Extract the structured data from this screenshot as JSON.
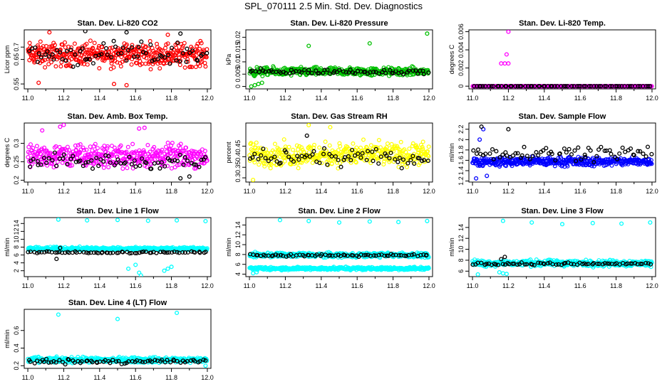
{
  "figure": {
    "title": "SPL_070111  2.5 Min. Std. Dev. Diagnostics"
  },
  "chart_data": [
    {
      "type": "scatter",
      "title": "Stan. Dev. Li-820 CO2",
      "ylabel": "Licor ppm",
      "xlim": [
        10.98,
        12.02
      ],
      "ylim": [
        0.53,
        0.77
      ],
      "xticks": [
        11.0,
        11.2,
        11.4,
        11.6,
        11.8,
        12.0
      ],
      "yticks": [
        0.55,
        0.65,
        0.7
      ],
      "series": [
        {
          "color": "#ff0000",
          "role": "main",
          "band": [
            0.6,
            0.74
          ],
          "outliers": [
            [
              11.06,
              0.555
            ],
            [
              11.48,
              0.55
            ],
            [
              11.55,
              0.545
            ],
            [
              11.78,
              0.75
            ],
            [
              11.12,
              0.76
            ]
          ]
        },
        {
          "color": "#000000",
          "role": "reference",
          "band": [
            0.6,
            0.74
          ],
          "outliers": [
            [
              11.32,
              0.765
            ],
            [
              11.55,
              0.76
            ],
            [
              11.85,
              0.755
            ]
          ]
        }
      ]
    },
    {
      "type": "scatter",
      "title": "Stan. Dev. Li-820 Pressure",
      "ylabel": "kPa",
      "xlim": [
        10.98,
        12.02
      ],
      "ylim": [
        -0.001,
        0.023
      ],
      "xticks": [
        11.0,
        11.2,
        11.4,
        11.6,
        11.8,
        12.0
      ],
      "yticks": [
        0.0,
        0.005,
        0.01,
        0.015,
        0.02
      ],
      "series": [
        {
          "color": "#00c000",
          "role": "main",
          "band": [
            0.0035,
            0.0085
          ],
          "outliers": [
            [
              11.33,
              0.0165
            ],
            [
              11.67,
              0.0175
            ],
            [
              11.99,
              0.0215
            ],
            [
              11.01,
              0.0
            ],
            [
              11.03,
              0.0005
            ],
            [
              11.05,
              0.001
            ],
            [
              11.07,
              0.0015
            ]
          ]
        },
        {
          "color": "#000000",
          "role": "reference",
          "band": [
            0.0045,
            0.0075
          ],
          "outliers": []
        }
      ]
    },
    {
      "type": "scatter",
      "title": "Stan. Dev. Li-820 Temp.",
      "ylabel": "degrees C",
      "xlim": [
        10.98,
        12.02
      ],
      "ylim": [
        -0.0003,
        0.0062
      ],
      "xticks": [
        11.0,
        11.2,
        11.4,
        11.6,
        11.8,
        12.0
      ],
      "yticks": [
        0.0,
        0.002,
        0.004,
        0.006
      ],
      "series": [
        {
          "color": "#ff00ff",
          "role": "main",
          "band": [
            0.0,
            0.0
          ],
          "outliers": [
            [
              11.16,
              0.0025
            ],
            [
              11.18,
              0.0025
            ],
            [
              11.19,
              0.0035
            ],
            [
              11.2,
              0.006
            ],
            [
              11.2,
              0.0025
            ]
          ]
        },
        {
          "color": "#000000",
          "role": "reference",
          "band": [
            0.0,
            0.0
          ],
          "outliers": []
        }
      ]
    },
    {
      "type": "scatter",
      "title": "Stan. Dev. Amb. Box Temp.",
      "ylabel": "degrees C",
      "xlim": [
        10.98,
        12.02
      ],
      "ylim": [
        0.195,
        0.355
      ],
      "xticks": [
        11.0,
        11.2,
        11.4,
        11.6,
        11.8,
        12.0
      ],
      "yticks": [
        0.2,
        0.25,
        0.3
      ],
      "series": [
        {
          "color": "#ff00ff",
          "role": "main",
          "band": [
            0.22,
            0.31
          ],
          "outliers": [
            [
              11.18,
              0.345
            ],
            [
              11.2,
              0.35
            ],
            [
              11.62,
              0.34
            ],
            [
              11.65,
              0.342
            ],
            [
              11.08,
              0.335
            ]
          ]
        },
        {
          "color": "#000000",
          "role": "reference",
          "band": [
            0.22,
            0.28
          ],
          "outliers": [
            [
              11.85,
              0.205
            ],
            [
              11.9,
              0.21
            ]
          ]
        }
      ]
    },
    {
      "type": "scatter",
      "title": "Stan. Dev. Gas Stream RH",
      "ylabel": "percent",
      "xlim": [
        10.98,
        12.02
      ],
      "ylim": [
        0.28,
        0.56
      ],
      "xticks": [
        11.0,
        11.2,
        11.4,
        11.6,
        11.8,
        12.0
      ],
      "yticks": [
        0.3,
        0.35,
        0.4,
        0.45
      ],
      "series": [
        {
          "color": "#ffff00",
          "role": "main",
          "band": [
            0.33,
            0.49
          ],
          "outliers": [
            [
              11.45,
              0.54
            ],
            [
              11.02,
              0.29
            ],
            [
              11.33,
              0.55
            ]
          ]
        },
        {
          "color": "#000000",
          "role": "reference",
          "band": [
            0.34,
            0.45
          ],
          "outliers": [
            [
              11.32,
              0.5
            ]
          ]
        }
      ]
    },
    {
      "type": "scatter",
      "title": "Stan. Dev. Sample Flow",
      "ylabel": "ml/min",
      "xlim": [
        10.98,
        12.02
      ],
      "ylim": [
        1.18,
        2.32
      ],
      "xticks": [
        11.0,
        11.2,
        11.4,
        11.6,
        11.8,
        12.0
      ],
      "yticks": [
        1.2,
        1.4,
        1.6,
        1.8,
        2.0,
        2.2
      ],
      "series": [
        {
          "color": "#0000ff",
          "role": "main",
          "band": [
            1.45,
            1.7
          ],
          "outliers": [
            [
              11.04,
              2.0
            ],
            [
              11.06,
              2.2
            ],
            [
              11.08,
              1.3
            ],
            [
              11.02,
              1.25
            ]
          ]
        },
        {
          "color": "#000000",
          "role": "reference",
          "band": [
            1.55,
            1.95
          ],
          "outliers": [
            [
              11.05,
              2.25
            ],
            [
              11.2,
              2.2
            ]
          ]
        }
      ]
    },
    {
      "type": "scatter",
      "title": "Stan. Dev. Line 1 Flow",
      "ylabel": "ml/min",
      "xlim": [
        10.98,
        12.02
      ],
      "ylim": [
        0.5,
        15.5
      ],
      "xticks": [
        11.0,
        11.2,
        11.4,
        11.6,
        11.8,
        12.0
      ],
      "yticks": [
        2,
        4,
        6,
        8,
        10,
        12,
        14
      ],
      "series": [
        {
          "color": "#00ffff",
          "role": "main",
          "band": [
            7.0,
            8.2
          ],
          "outliers": [
            [
              11.17,
              15.0
            ],
            [
              11.33,
              14.8
            ],
            [
              11.5,
              14.9
            ],
            [
              11.67,
              14.7
            ],
            [
              11.83,
              14.8
            ],
            [
              11.99,
              14.6
            ],
            [
              11.6,
              3.5
            ],
            [
              11.62,
              1.5
            ],
            [
              11.63,
              0.8
            ],
            [
              11.56,
              2.5
            ],
            [
              11.76,
              2.0
            ],
            [
              11.78,
              2.5
            ],
            [
              11.8,
              3.0
            ]
          ]
        },
        {
          "color": "#000000",
          "role": "reference",
          "band": [
            6.3,
            7.0
          ],
          "outliers": [
            [
              11.16,
              5.0
            ],
            [
              11.18,
              7.8
            ]
          ]
        }
      ]
    },
    {
      "type": "scatter",
      "title": "Stan. Dev. Line 2 Flow",
      "ylabel": "ml/min",
      "xlim": [
        10.98,
        12.02
      ],
      "ylim": [
        3.5,
        15.5
      ],
      "xticks": [
        11.0,
        11.2,
        11.4,
        11.6,
        11.8,
        12.0
      ],
      "yticks": [
        4,
        6,
        8,
        10,
        12,
        14
      ],
      "series": [
        {
          "color": "#00ffff",
          "role": "main",
          "band": [
            7.2,
            8.6
          ],
          "outliers": [
            [
              11.17,
              15.0
            ],
            [
              11.33,
              14.8
            ],
            [
              11.5,
              14.5
            ],
            [
              11.67,
              14.7
            ],
            [
              11.83,
              14.6
            ],
            [
              11.99,
              14.8
            ]
          ]
        },
        {
          "color": "#00ffff",
          "role": "main-lower",
          "band": [
            4.7,
            5.6
          ],
          "outliers": [
            [
              11.02,
              4.2
            ],
            [
              11.04,
              4.4
            ]
          ]
        },
        {
          "color": "#000000",
          "role": "reference",
          "band": [
            7.5,
            8.2
          ],
          "outliers": []
        }
      ]
    },
    {
      "type": "scatter",
      "title": "Stan. Dev. Line 3 Flow",
      "ylabel": "ml/min",
      "xlim": [
        10.98,
        12.02
      ],
      "ylim": [
        5.0,
        15.8
      ],
      "xticks": [
        11.0,
        11.2,
        11.4,
        11.6,
        11.8,
        12.0
      ],
      "yticks": [
        6,
        8,
        10,
        12,
        14
      ],
      "series": [
        {
          "color": "#00ffff",
          "role": "main",
          "band": [
            6.6,
            8.3
          ],
          "outliers": [
            [
              11.17,
              15.2
            ],
            [
              11.33,
              14.9
            ],
            [
              11.5,
              14.6
            ],
            [
              11.67,
              14.8
            ],
            [
              11.83,
              14.7
            ],
            [
              11.99,
              14.9
            ],
            [
              11.03,
              5.4
            ],
            [
              11.15,
              5.8
            ],
            [
              11.17,
              5.6
            ],
            [
              11.19,
              5.5
            ]
          ]
        },
        {
          "color": "#000000",
          "role": "reference",
          "band": [
            7.0,
            7.7
          ],
          "outliers": [
            [
              11.16,
              8.2
            ],
            [
              11.18,
              8.6
            ]
          ]
        }
      ]
    },
    {
      "type": "scatter",
      "title": "Stan. Dev. Line 4 (LT) Flow",
      "ylabel": "ml/min",
      "xlim": [
        10.98,
        12.02
      ],
      "ylim": [
        0.17,
        0.84
      ],
      "xticks": [
        11.0,
        11.2,
        11.4,
        11.6,
        11.8,
        12.0
      ],
      "yticks": [
        0.2,
        0.4,
        0.6
      ],
      "series": [
        {
          "color": "#00ffff",
          "role": "main",
          "band": [
            0.22,
            0.31
          ],
          "outliers": [
            [
              11.17,
              0.78
            ],
            [
              11.5,
              0.73
            ],
            [
              11.83,
              0.8
            ],
            [
              11.99,
              0.2
            ]
          ]
        },
        {
          "color": "#000000",
          "role": "reference",
          "band": [
            0.21,
            0.29
          ],
          "outliers": []
        }
      ]
    }
  ]
}
